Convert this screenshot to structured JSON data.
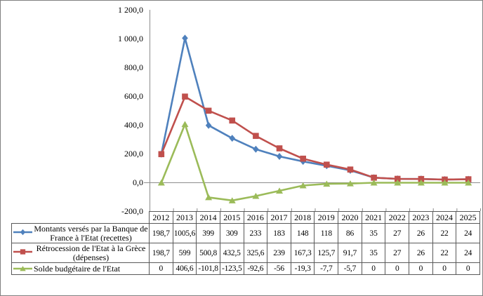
{
  "frame": {
    "background": "#ffffff",
    "border_color": "#808080",
    "axis_color": "#8C8C8C",
    "table_border_color": "#595959",
    "text_color": "#000000"
  },
  "chart_data": {
    "type": "line",
    "title": "",
    "xlabel": "",
    "ylabel": "",
    "categories": [
      "2012",
      "2013",
      "2014",
      "2015",
      "2016",
      "2017",
      "2018",
      "2019",
      "2020",
      "2021",
      "2022",
      "2023",
      "2024",
      "2025"
    ],
    "series": [
      {
        "name": "Montants versés par la Banque de France à l'Etat (recettes)",
        "label_lines": [
          "Montants versés par la Banque de",
          "France à l'Etat (recettes)"
        ],
        "color": "#4F81BD",
        "marker": "diamond",
        "values": [
          198.7,
          1005.6,
          399,
          309,
          233,
          183,
          148,
          118,
          86,
          35,
          27,
          26,
          22,
          24
        ],
        "values_display": [
          "198,7",
          "1005,6",
          "399",
          "309",
          "233",
          "183",
          "148",
          "118",
          "86",
          "35",
          "27",
          "26",
          "22",
          "24"
        ]
      },
      {
        "name": "Rétrocession de l'Etat à la Grèce (dépenses)",
        "label_lines": [
          "Rétrocession de l'Etat à la Grèce",
          "(dépenses)"
        ],
        "color": "#C0504D",
        "marker": "square",
        "values": [
          198.7,
          599,
          500.8,
          432.5,
          325.6,
          239,
          167.3,
          125.7,
          91.7,
          35,
          27,
          26,
          22,
          24
        ],
        "values_display": [
          "198,7",
          "599",
          "500,8",
          "432,5",
          "325,6",
          "239",
          "167,3",
          "125,7",
          "91,7",
          "35",
          "27",
          "26",
          "22",
          "24"
        ]
      },
      {
        "name": "Solde budgétaire de l'Etat",
        "label_lines": [
          "Solde budgétaire de l'Etat"
        ],
        "color": "#9BBB59",
        "marker": "triangle",
        "values": [
          0,
          406.6,
          -101.8,
          -123.5,
          -92.6,
          -56,
          -19.3,
          -7.7,
          -5.7,
          0,
          0,
          0,
          0,
          0
        ],
        "values_display": [
          "0",
          "406,6",
          "-101,8",
          "-123,5",
          "-92,6",
          "-56",
          "-19,3",
          "-7,7",
          "-5,7",
          "0",
          "0",
          "0",
          "0",
          "0"
        ]
      }
    ],
    "ylim": [
      -200,
      1200
    ],
    "ytick_interval": 200,
    "ytick_labels": [
      "1 200,0",
      "1 000,0",
      "800,0",
      "600,0",
      "400,0",
      "200,0",
      "0,0",
      "-200,0"
    ],
    "grid": "none",
    "zero_axis_line": true,
    "legend_position": "data-table-left-column"
  }
}
